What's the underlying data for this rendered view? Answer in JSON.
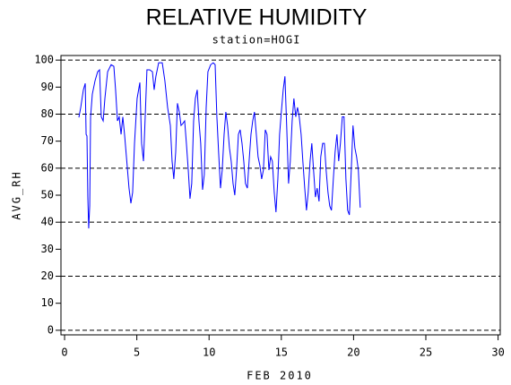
{
  "chart_data": {
    "type": "line",
    "title": "RELATIVE HUMIDITY",
    "subtitle": "station=HOGI",
    "xlabel": "FEB 2010",
    "ylabel": "AVG_RH",
    "xlim": [
      -0.25,
      30.15
    ],
    "ylim": [
      -1.7,
      101.7
    ],
    "xticks": [
      0,
      5,
      10,
      15,
      20,
      25,
      30
    ],
    "yticks": [
      0,
      10,
      20,
      30,
      40,
      50,
      60,
      70,
      80,
      90,
      100
    ],
    "reference_lines": [
      0,
      20,
      40,
      60,
      80,
      100
    ],
    "series": [
      {
        "color": "#0000ff",
        "x": [
          0.99,
          1.12,
          1.3,
          1.43,
          1.49,
          1.55,
          1.61,
          1.67,
          1.74,
          1.8,
          1.92,
          2.11,
          2.29,
          2.42,
          2.54,
          2.67,
          2.79,
          2.98,
          3.22,
          3.41,
          3.53,
          3.66,
          3.78,
          3.91,
          4.03,
          4.15,
          4.28,
          4.46,
          4.59,
          4.71,
          4.84,
          5.02,
          5.21,
          5.33,
          5.46,
          5.58,
          5.7,
          5.89,
          6.08,
          6.2,
          6.32,
          6.51,
          6.76,
          6.94,
          7.13,
          7.32,
          7.44,
          7.56,
          7.69,
          7.81,
          7.94,
          8.06,
          8.18,
          8.31,
          8.43,
          8.56,
          8.68,
          8.8,
          8.93,
          9.05,
          9.18,
          9.3,
          9.42,
          9.55,
          9.67,
          9.8,
          9.92,
          10.11,
          10.29,
          10.42,
          10.54,
          10.66,
          10.79,
          10.91,
          11.04,
          11.16,
          11.28,
          11.41,
          11.53,
          11.66,
          11.78,
          11.9,
          12.03,
          12.15,
          12.28,
          12.4,
          12.52,
          12.65,
          12.77,
          12.9,
          13.02,
          13.14,
          13.27,
          13.39,
          13.52,
          13.64,
          13.76,
          13.89,
          14.01,
          14.14,
          14.26,
          14.38,
          14.51,
          14.63,
          14.76,
          14.88,
          15.0,
          15.13,
          15.25,
          15.38,
          15.5,
          15.62,
          15.75,
          15.87,
          16.0,
          16.12,
          16.24,
          16.37,
          16.49,
          16.62,
          16.74,
          16.86,
          16.99,
          17.11,
          17.23,
          17.36,
          17.48,
          17.61,
          17.73,
          17.86,
          17.98,
          18.1,
          18.23,
          18.35,
          18.47,
          18.6,
          18.72,
          18.85,
          18.97,
          19.09,
          19.22,
          19.34,
          19.47,
          19.59,
          19.71,
          19.84,
          19.96,
          20.09,
          20.21,
          20.33,
          20.46
        ],
        "values": [
          78.8,
          82.5,
          89,
          91.4,
          72.5,
          71.9,
          49.3,
          37.7,
          46,
          79,
          87.4,
          92.4,
          95.7,
          96.4,
          79,
          77.5,
          85.8,
          95.7,
          98.3,
          97.7,
          89,
          77.5,
          79,
          72.5,
          79,
          72.5,
          64.2,
          52.6,
          47,
          51,
          69.2,
          85.8,
          91.7,
          69.2,
          62.6,
          79,
          96.4,
          96.4,
          95.7,
          89,
          94,
          99,
          99,
          92.4,
          82.5,
          75.8,
          62.6,
          56,
          65.9,
          84,
          80.8,
          75.8,
          76.5,
          77.5,
          69.2,
          59.3,
          48.7,
          54.3,
          77.5,
          85.8,
          89,
          77.5,
          69.2,
          52,
          57.6,
          82.5,
          95.7,
          98.3,
          99,
          98.3,
          79,
          65.9,
          52.6,
          59.3,
          72.5,
          80.8,
          75.8,
          67.5,
          62.6,
          54.3,
          50,
          59.3,
          72.5,
          74.2,
          69.2,
          62.6,
          54.3,
          52.6,
          62.6,
          72.5,
          77.5,
          80.8,
          72.5,
          64.2,
          60.9,
          56,
          59.3,
          74.2,
          72.5,
          59.3,
          64.2,
          62.6,
          51,
          43.7,
          56,
          72.5,
          80.8,
          89,
          94,
          74.2,
          54.3,
          62.6,
          77.5,
          85.8,
          79,
          82.5,
          79,
          72.5,
          62.6,
          52.6,
          44.4,
          51,
          62.6,
          69.2,
          59.3,
          49.3,
          52.6,
          47.7,
          64.2,
          69.2,
          69.2,
          59.3,
          51,
          46,
          44.4,
          56,
          65.9,
          72.5,
          62.6,
          69.2,
          79,
          79,
          56,
          44.4,
          42.7,
          59.3,
          75.8,
          67.5,
          64.2,
          59.3,
          45.4
        ]
      }
    ]
  }
}
